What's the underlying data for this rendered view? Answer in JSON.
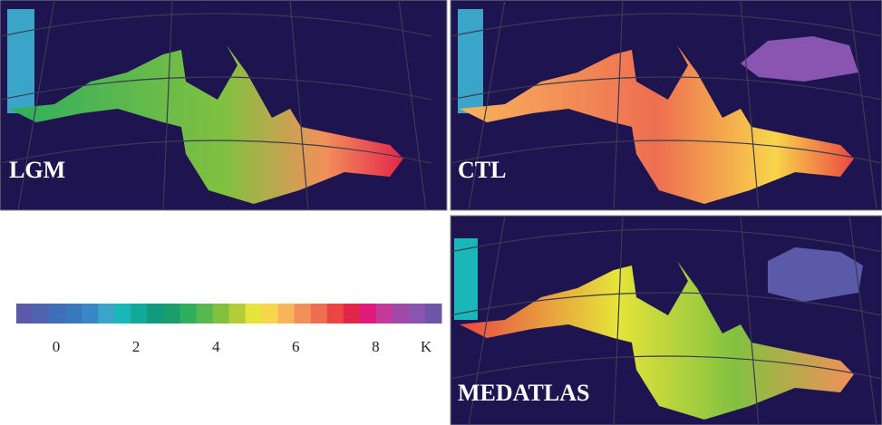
{
  "panels": [
    {
      "label": "LGM"
    },
    {
      "label": "CTL"
    },
    {
      "label": "MEDATLAS"
    }
  ],
  "colorbar": {
    "clim": [
      -1,
      9.65
    ],
    "ticks": [
      0,
      2,
      4,
      6,
      8
    ],
    "unit": "K",
    "colors": [
      "#5a5aa8",
      "#4f63b0",
      "#3f6fb8",
      "#3a78be",
      "#3b86c4",
      "#3aa5c8",
      "#19b7b7",
      "#12a99a",
      "#109a80",
      "#1a9f6a",
      "#2fae5e",
      "#55b850",
      "#82c140",
      "#b4cc35",
      "#e6e43a",
      "#f8d54a",
      "#f7b45a",
      "#f2905a",
      "#ee6e52",
      "#ea4742",
      "#e4254a",
      "#e01a7a",
      "#c43a9a",
      "#a04aa8",
      "#8a55b0",
      "#6e55a8"
    ]
  }
}
